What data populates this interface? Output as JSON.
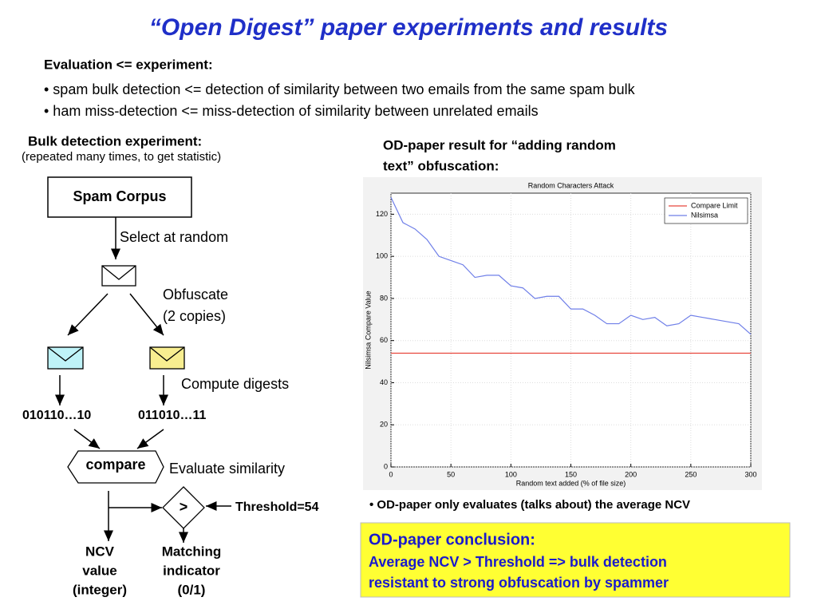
{
  "title": "“Open Digest” paper experiments and results",
  "intro": {
    "heading": "Evaluation <= experiment:",
    "bullets": [
      "• spam bulk detection <= detection of similarity between two emails from the same spam bulk",
      "• ham miss-detection <= miss-detection of similarity between unrelated emails"
    ]
  },
  "diagram": {
    "heading": "Bulk detection experiment:",
    "subheading": "(repeated many times, to get statistic)",
    "corpus": "Spam Corpus",
    "select": "Select at random",
    "obfuscate": [
      "Obfuscate",
      "(2 copies)"
    ],
    "digests": "Compute digests",
    "digest_a": "010110…10",
    "digest_b": "011010…11",
    "compare": "compare",
    "evaluate": "Evaluate similarity",
    "greater": ">",
    "threshold": "Threshold=54",
    "ncv": [
      "NCV",
      "value",
      "(integer)"
    ],
    "matching": [
      "Matching",
      "indicator",
      "(0/1)"
    ]
  },
  "chart_heading": [
    "OD-paper result for “adding random",
    "text” obfuscation:"
  ],
  "note": "• OD-paper only evaluates (talks about) the average NCV",
  "conclusion": {
    "title": "OD-paper conclusion:",
    "lines": [
      "Average NCV > Threshold => bulk detection",
      "resistant to strong obfuscation by spammer"
    ]
  },
  "chart_data": {
    "type": "line",
    "title": "Random Characters Attack",
    "xlabel": "Random text added (% of file size)",
    "ylabel": "Nilsimsa Compare Value",
    "xlim": [
      0,
      300
    ],
    "ylim": [
      0,
      130
    ],
    "xticks": [
      0,
      50,
      100,
      150,
      200,
      250,
      300
    ],
    "yticks": [
      0,
      20,
      40,
      60,
      80,
      100,
      120
    ],
    "grid": true,
    "legend": "upper right",
    "series": [
      {
        "name": "Compare Limit",
        "color": "#e8463c",
        "x": [
          0,
          300
        ],
        "values": [
          54,
          54
        ]
      },
      {
        "name": "Nilsimsa",
        "color": "#6f7fe8",
        "x": [
          0,
          10,
          20,
          30,
          40,
          50,
          60,
          70,
          80,
          90,
          100,
          110,
          120,
          130,
          140,
          150,
          160,
          170,
          180,
          190,
          200,
          210,
          220,
          230,
          240,
          250,
          260,
          270,
          280,
          290,
          300
        ],
        "values": [
          128,
          116,
          113,
          108,
          100,
          98,
          96,
          90,
          91,
          91,
          86,
          85,
          80,
          81,
          81,
          75,
          75,
          72,
          68,
          68,
          72,
          70,
          71,
          67,
          68,
          72,
          71,
          70,
          69,
          68,
          63
        ]
      }
    ]
  }
}
